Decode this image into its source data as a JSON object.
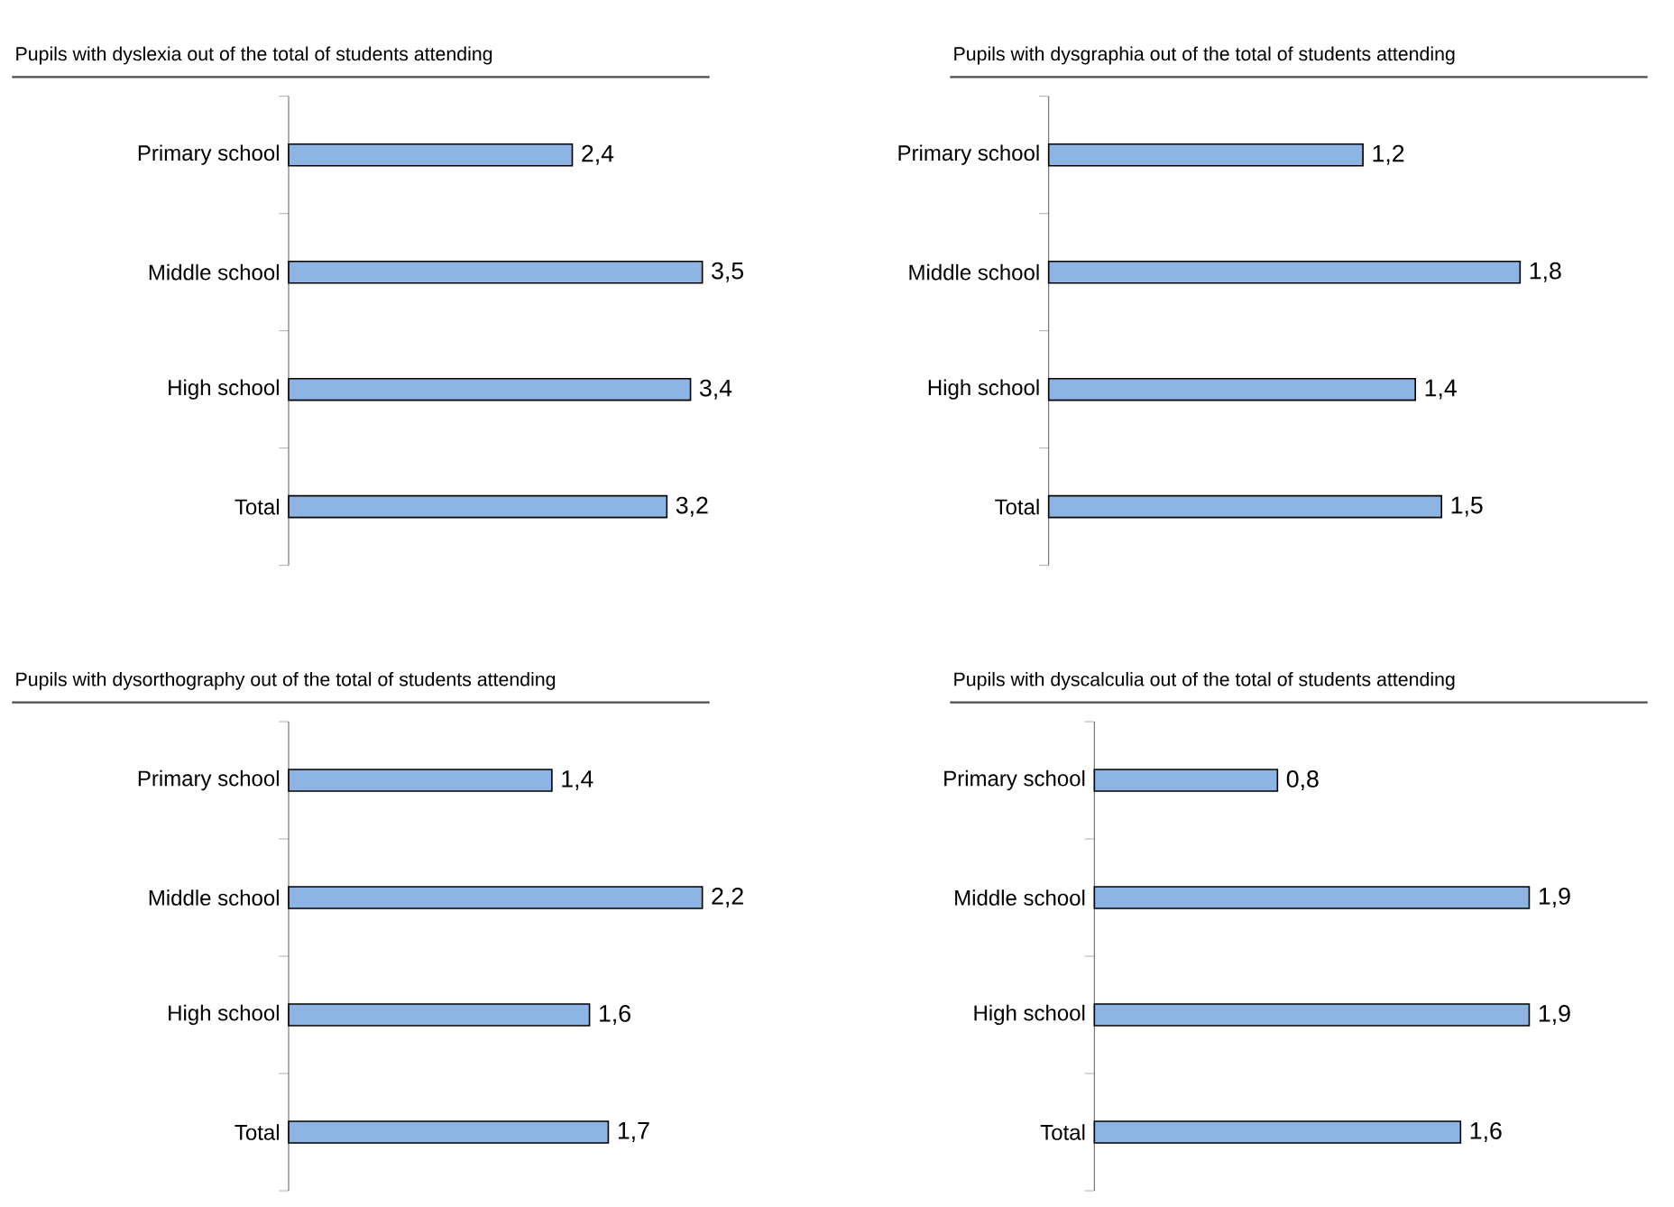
{
  "chart_data": [
    {
      "type": "bar",
      "orientation": "horizontal",
      "title": "Pupils with dyslexia out of the total of students attending",
      "categories": [
        "Primary school",
        "Middle school",
        "High school",
        "Total"
      ],
      "values": [
        2.4,
        3.5,
        3.4,
        3.2
      ],
      "value_labels": [
        "2,4",
        "3,5",
        "3,4",
        "3,2"
      ],
      "color": "#8db4e2",
      "tick_labels": "y"
    },
    {
      "type": "bar",
      "orientation": "horizontal",
      "title": "Pupils with dysgraphia out of the total of students attending",
      "categories": [
        "Primary school",
        "Middle school",
        "High school",
        "Total"
      ],
      "values": [
        1.2,
        1.8,
        1.4,
        1.5
      ],
      "value_labels": [
        "1,2",
        "1,8",
        "1,4",
        "1,5"
      ],
      "color": "#8db4e2",
      "tick_labels": "y"
    },
    {
      "type": "bar",
      "orientation": "horizontal",
      "title": "Pupils with dysorthography out of the total of students attending",
      "categories": [
        "Primary school",
        "Middle school",
        "High school",
        "Total"
      ],
      "values": [
        1.4,
        2.2,
        1.6,
        1.7
      ],
      "value_labels": [
        "1,4",
        "2,2",
        "1,6",
        "1,7"
      ],
      "color": "#8db4e2",
      "tick_labels": "y"
    },
    {
      "type": "bar",
      "orientation": "horizontal",
      "title": "Pupils with dyscalculia out of the total of students attending",
      "categories": [
        "Primary school",
        "Middle school",
        "High school",
        "Total"
      ],
      "values": [
        0.8,
        1.9,
        1.9,
        1.6
      ],
      "value_labels": [
        "0,8",
        "1,9",
        "1,9",
        "1,6"
      ],
      "color": "#8db4e2",
      "tick_labels": "y"
    }
  ]
}
